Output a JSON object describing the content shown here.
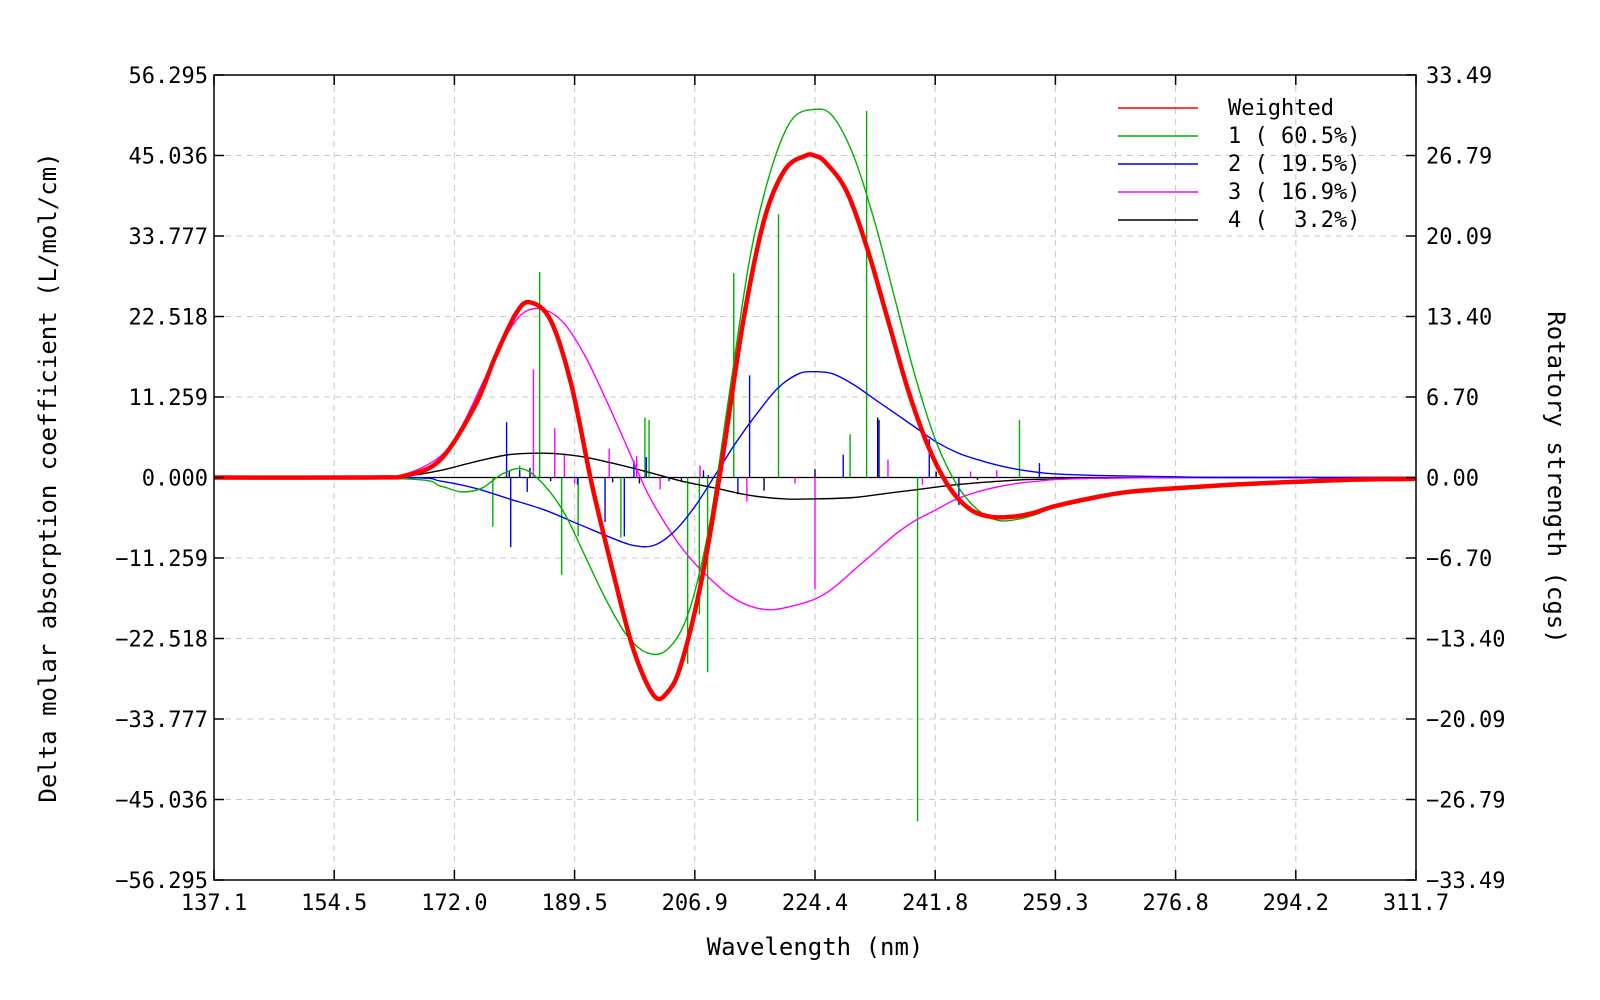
{
  "chart_data": {
    "type": "line",
    "xlabel": "Wavelength (nm)",
    "ylabel": "Delta molar absorption coefficient (L/mol/cm)",
    "y2label": "Rotatory strength (cgs)",
    "xlim": [
      137.1,
      311.7
    ],
    "ylim": [
      -56.295,
      56.295
    ],
    "y2lim": [
      -33.49,
      33.49
    ],
    "x_ticks": [
      "137.1",
      "154.5",
      "172.0",
      "189.5",
      "206.9",
      "224.4",
      "241.8",
      "259.3",
      "276.8",
      "294.2",
      "311.7"
    ],
    "y_ticks": [
      "56.295",
      "45.036",
      "33.777",
      "22.518",
      "11.259",
      "0.000",
      "−11.259",
      "−22.518",
      "−33.777",
      "−45.036",
      "−56.295"
    ],
    "y2_ticks": [
      "33.49",
      "26.79",
      "20.09",
      "13.40",
      "6.70",
      "0.00",
      "−6.70",
      "−13.40",
      "−20.09",
      "−26.79",
      "−33.49"
    ],
    "grid": true,
    "legend_position": "top-right",
    "colors": {
      "weighted": "#ff0000",
      "c1": "#00b000",
      "c2": "#0000ff",
      "c3": "#ff00ff",
      "c4": "#000000",
      "c2_sticks": "#0000ff",
      "c3_sticks": "#ff00ff",
      "c4_sticks": "#000040"
    },
    "legend": [
      {
        "key": "weighted",
        "label": "Weighted"
      },
      {
        "key": "c1",
        "label": "1 ( 60.5%)"
      },
      {
        "key": "c2",
        "label": "2 ( 19.5%)"
      },
      {
        "key": "c3",
        "label": "3 ( 16.9%)"
      },
      {
        "key": "c4",
        "label": "4 (  3.2%)"
      }
    ],
    "series": [
      {
        "key": "weighted",
        "x": [
          137.1,
          160,
          165,
          170,
          175,
          178,
          181,
          183,
          186,
          189,
          192,
          195,
          198,
          201,
          203,
          205,
          208,
          211,
          214,
          217,
          220,
          223,
          224.4,
          226,
          229,
          232,
          235,
          238,
          241,
          244,
          247,
          250,
          253,
          256,
          259.3,
          265,
          270,
          276.8,
          285,
          294.2,
          303,
          311.7
        ],
        "y": [
          0,
          0,
          0.3,
          2.5,
          10,
          17,
          23,
          24.5,
          22,
          13,
          -1,
          -13,
          -24,
          -30.5,
          -30,
          -26,
          -14,
          3,
          22,
          36,
          43,
          45,
          45,
          44,
          40,
          32,
          22,
          12,
          4,
          -1.5,
          -4.5,
          -5.5,
          -5.5,
          -5,
          -4,
          -2.8,
          -2,
          -1.5,
          -1,
          -0.6,
          -0.3,
          -0.2
        ]
      },
      {
        "key": "c1",
        "x": [
          137.1,
          165,
          170,
          173,
          176,
          179,
          182,
          185,
          188,
          191,
          194,
          197,
          200,
          203,
          206,
          209,
          212,
          215,
          218,
          221,
          224.4,
          227,
          230,
          233,
          236,
          239,
          242,
          245,
          248,
          251,
          254,
          257,
          259.3,
          265,
          270,
          276.8,
          285,
          294.2,
          311.7
        ],
        "y": [
          0,
          -0.2,
          -1.2,
          -2,
          -1.5,
          0.5,
          1.2,
          -1,
          -5,
          -11,
          -17,
          -22,
          -24.5,
          -24,
          -19,
          -7,
          12,
          31,
          43,
          50,
          51.5,
          50.5,
          45,
          36,
          25,
          14,
          5,
          -1,
          -4.5,
          -6,
          -5.8,
          -5,
          -4,
          -2.8,
          -2,
          -1.5,
          -1,
          -0.6,
          -0.2
        ]
      },
      {
        "key": "c2",
        "x": [
          137.1,
          165,
          170,
          175,
          180,
          185,
          190,
          195,
          198,
          201,
          204,
          207,
          210,
          213,
          216,
          219,
          222,
          224.4,
          227,
          230,
          233,
          236,
          239,
          242,
          245,
          248,
          251,
          254,
          257,
          259.3,
          265,
          270,
          276.8,
          285,
          311.7
        ],
        "y": [
          0,
          0,
          -0.5,
          -1.5,
          -3,
          -4.5,
          -6.5,
          -8.5,
          -9.5,
          -9.5,
          -7.5,
          -4,
          0.5,
          5,
          9,
          12.5,
          14.5,
          14.8,
          14.5,
          13,
          11,
          9,
          7,
          5,
          3.5,
          2.5,
          1.7,
          1.1,
          0.7,
          0.5,
          0.3,
          0.2,
          0.1,
          0,
          0
        ]
      },
      {
        "key": "c3",
        "x": [
          137.1,
          160,
          165,
          170,
          173,
          176,
          179,
          182,
          185,
          188,
          191,
          194,
          197,
          200,
          203,
          206,
          209,
          212,
          215,
          218,
          221,
          224.4,
          227,
          230,
          233,
          236,
          239,
          242,
          245,
          248,
          251,
          254,
          257,
          259.3,
          265,
          276.8,
          294.2,
          311.7
        ],
        "y": [
          0,
          0,
          0.5,
          3,
          7,
          13,
          19,
          23,
          23.5,
          21.5,
          17,
          11,
          4.5,
          -2,
          -7,
          -11,
          -14,
          -16.5,
          -18,
          -18.5,
          -18,
          -17,
          -15.5,
          -13,
          -10.5,
          -8,
          -6,
          -4.5,
          -3,
          -2,
          -1.3,
          -0.8,
          -0.5,
          -0.3,
          -0.1,
          0,
          0,
          0
        ]
      },
      {
        "key": "c4",
        "x": [
          137.1,
          160,
          165,
          170,
          175,
          180,
          185,
          190,
          195,
          200,
          205,
          210,
          215,
          220,
          224.4,
          230,
          235,
          240,
          245,
          250,
          255,
          259.3,
          265,
          276.8,
          311.7
        ],
        "y": [
          0,
          0,
          0.2,
          1,
          2.2,
          3.2,
          3.4,
          3,
          2,
          0.8,
          -0.5,
          -1.5,
          -2.5,
          -3,
          -3,
          -2.8,
          -2.2,
          -1.6,
          -1,
          -0.6,
          -0.3,
          -0.2,
          -0.1,
          0,
          0
        ]
      }
    ],
    "sticks": [
      {
        "key": "c1",
        "x": [
          177.6,
          181.5,
          184.4,
          187.6,
          190.0,
          196.2,
          199.7,
          200.3,
          205.9,
          207.6,
          208.8,
          212.6,
          219.1,
          229.5,
          231.9,
          239.3,
          254.1
        ],
        "r": [
          -4.1,
          1.0,
          17.1,
          -8.1,
          -4.9,
          -5.0,
          5.0,
          4.8,
          -15.5,
          -11.4,
          -16.2,
          17.0,
          21.9,
          3.6,
          30.5,
          -28.6,
          4.8
        ]
      },
      {
        "key": "c2",
        "x": [
          179.6,
          180.2,
          181.5,
          182.6,
          189.9,
          193.9,
          196.7,
          198.1,
          199.9,
          203.2,
          208.9,
          213.2,
          214.9,
          228.5,
          233.7,
          241.0,
          245.3,
          257.0
        ],
        "r": [
          4.6,
          -5.8,
          0.6,
          -1.2,
          -0.6,
          -3.7,
          -4.9,
          1.4,
          1.7,
          -0.3,
          0.2,
          -1.4,
          8.5,
          1.9,
          4.8,
          3.2,
          -2.3,
          1.2
        ]
      },
      {
        "key": "c3",
        "x": [
          183.5,
          186.6,
          188.0,
          189.5,
          194.5,
          198.5,
          201.9,
          207.7,
          214.5,
          221.5,
          224.4,
          235.0,
          240.0,
          247.0,
          250.8
        ],
        "r": [
          9.0,
          4.1,
          2.0,
          -0.5,
          2.4,
          1.8,
          -1.0,
          1.0,
          -2.0,
          -0.5,
          -9.3,
          1.5,
          -0.6,
          0.5,
          0.6
        ]
      },
      {
        "key": "c4",
        "x": [
          180.0,
          183.0,
          186.0,
          195.0,
          198.9,
          205.0,
          208.2,
          217.0,
          224.4,
          233.5,
          242.0,
          248.0
        ],
        "r": [
          0.5,
          0.8,
          -0.3,
          -0.4,
          -0.5,
          -0.3,
          0.6,
          -1.1,
          0.7,
          5.0,
          0.5,
          -0.2
        ]
      }
    ]
  }
}
